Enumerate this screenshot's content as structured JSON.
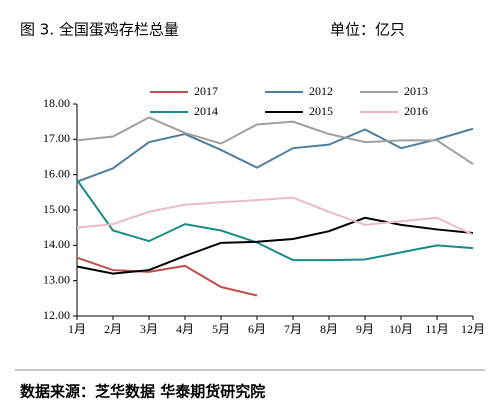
{
  "chart_data": {
    "type": "line",
    "title": "图 3. 全国蛋鸡存栏总量",
    "unit": "单位：亿只",
    "source": "数据来源：芝华数据 华泰期货研究院",
    "categories": [
      "1月",
      "2月",
      "3月",
      "4月",
      "5月",
      "6月",
      "7月",
      "8月",
      "9月",
      "10月",
      "11月",
      "12月"
    ],
    "ylim": [
      12,
      18
    ],
    "yticks": [
      {
        "value": 12,
        "label": "12.00"
      },
      {
        "value": 13,
        "label": "13.00"
      },
      {
        "value": 14,
        "label": "14.00"
      },
      {
        "value": 15,
        "label": "15.00"
      },
      {
        "value": 16,
        "label": "16.00"
      },
      {
        "value": 17,
        "label": "17.00"
      },
      {
        "value": 18,
        "label": "18.00"
      }
    ],
    "series": [
      {
        "name": "2017",
        "color": "#c0504d",
        "values": [
          13.65,
          13.3,
          13.25,
          13.42,
          12.82,
          12.58,
          null,
          null,
          null,
          null,
          null,
          null
        ]
      },
      {
        "name": "2012",
        "color": "#4f7fa0",
        "values": [
          15.8,
          16.18,
          16.92,
          17.15,
          16.7,
          16.2,
          16.75,
          16.85,
          17.28,
          16.75,
          17.0,
          17.3
        ]
      },
      {
        "name": "2013",
        "color": "#a0a0a0",
        "values": [
          16.97,
          17.08,
          17.62,
          17.18,
          16.88,
          17.42,
          17.5,
          17.15,
          16.92,
          16.97,
          16.97,
          16.3
        ]
      },
      {
        "name": "2014",
        "color": "#1a8a8a",
        "values": [
          15.85,
          14.42,
          14.12,
          14.6,
          14.42,
          14.08,
          13.58,
          13.58,
          13.6,
          13.8,
          14.0,
          13.92
        ]
      },
      {
        "name": "2015",
        "color": "#000000",
        "values": [
          13.4,
          13.2,
          13.3,
          13.7,
          14.07,
          14.1,
          14.18,
          14.4,
          14.78,
          14.58,
          14.45,
          14.35
        ]
      },
      {
        "name": "2016",
        "color": "#e8bcc6",
        "values": [
          14.5,
          14.6,
          14.95,
          15.15,
          15.22,
          15.28,
          15.35,
          14.95,
          14.58,
          14.68,
          14.78,
          14.3
        ]
      }
    ]
  }
}
